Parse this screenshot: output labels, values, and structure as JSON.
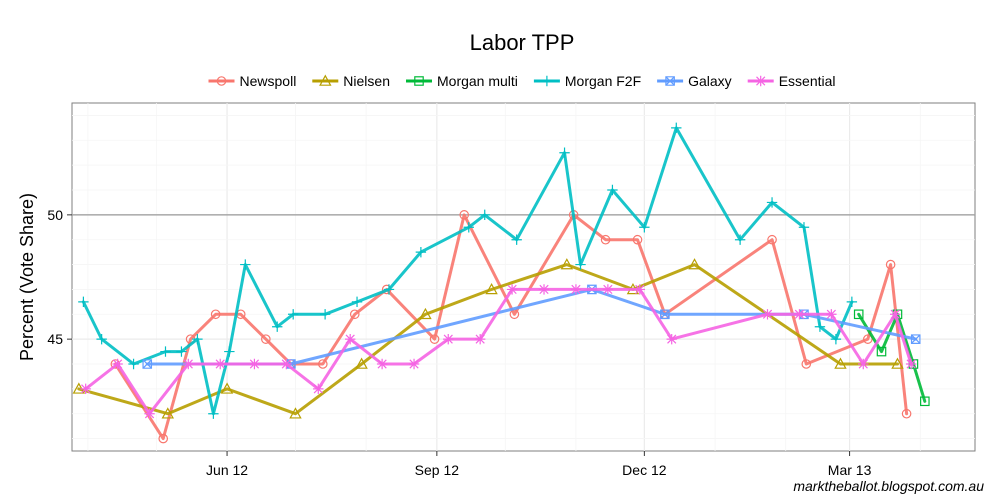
{
  "chart_data": {
    "type": "line",
    "title": "Labor TPP",
    "xlabel": "",
    "ylabel": "Percent (Vote Share)",
    "x_ticks": [
      {
        "label": "Jun 12",
        "date": "2012-06-01"
      },
      {
        "label": "Sep 12",
        "date": "2012-09-01"
      },
      {
        "label": "Dec 12",
        "date": "2012-12-01"
      },
      {
        "label": "Mar 13",
        "date": "2013-03-01"
      }
    ],
    "xlim": [
      "2012-03-25",
      "2013-04-25"
    ],
    "y_ticks": [
      45,
      50
    ],
    "ylim": [
      40.5,
      54.5
    ],
    "reference_line": 50,
    "grid": true,
    "legend_position": "top",
    "series": [
      {
        "name": "Newspoll",
        "color": "#F8766D",
        "marker": "circle",
        "points": [
          [
            "2012-04-13",
            44
          ],
          [
            "2012-05-04",
            41
          ],
          [
            "2012-05-16",
            45
          ],
          [
            "2012-05-27",
            46
          ],
          [
            "2012-06-07",
            46
          ],
          [
            "2012-06-18",
            45
          ],
          [
            "2012-06-29",
            44
          ],
          [
            "2012-07-13",
            44
          ],
          [
            "2012-07-27",
            46
          ],
          [
            "2012-08-10",
            47
          ],
          [
            "2012-08-31",
            45
          ],
          [
            "2012-09-13",
            50
          ],
          [
            "2012-10-05",
            46
          ],
          [
            "2012-10-31",
            50
          ],
          [
            "2012-11-14",
            49
          ],
          [
            "2012-11-28",
            49
          ],
          [
            "2012-12-10",
            46
          ],
          [
            "2013-01-26",
            49
          ],
          [
            "2013-02-10",
            44
          ],
          [
            "2013-03-09",
            45
          ],
          [
            "2013-03-19",
            48
          ],
          [
            "2013-03-26",
            42
          ]
        ]
      },
      {
        "name": "Nielsen",
        "color": "#B79F00",
        "marker": "triangle",
        "points": [
          [
            "2012-03-28",
            43
          ],
          [
            "2012-05-06",
            42
          ],
          [
            "2012-06-01",
            43
          ],
          [
            "2012-07-01",
            42
          ],
          [
            "2012-07-30",
            44
          ],
          [
            "2012-08-27",
            46
          ],
          [
            "2012-09-25",
            47
          ],
          [
            "2012-10-28",
            48
          ],
          [
            "2012-11-26",
            47
          ],
          [
            "2012-12-23",
            48
          ],
          [
            "2013-02-25",
            44
          ],
          [
            "2013-03-22",
            44
          ]
        ]
      },
      {
        "name": "Morgan multi",
        "color": "#00BA38",
        "marker": "square",
        "points": [
          [
            "2013-03-05",
            46
          ],
          [
            "2013-03-15",
            44.5
          ],
          [
            "2013-03-22",
            46
          ],
          [
            "2013-03-29",
            44
          ],
          [
            "2013-04-03",
            42.5
          ]
        ]
      },
      {
        "name": "Morgan F2F",
        "color": "#00BFC4",
        "marker": "plus",
        "points": [
          [
            "2012-03-30",
            46.5
          ],
          [
            "2012-04-07",
            45
          ],
          [
            "2012-04-21",
            44
          ],
          [
            "2012-05-05",
            44.5
          ],
          [
            "2012-05-12",
            44.5
          ],
          [
            "2012-05-19",
            45
          ],
          [
            "2012-05-26",
            42
          ],
          [
            "2012-06-02",
            44.5
          ],
          [
            "2012-06-09",
            48
          ],
          [
            "2012-06-23",
            45.5
          ],
          [
            "2012-06-30",
            46
          ],
          [
            "2012-07-14",
            46
          ],
          [
            "2012-07-28",
            46.5
          ],
          [
            "2012-08-11",
            47
          ],
          [
            "2012-08-25",
            48.5
          ],
          [
            "2012-09-15",
            49.5
          ],
          [
            "2012-09-22",
            50
          ],
          [
            "2012-10-06",
            49
          ],
          [
            "2012-10-27",
            52.5
          ],
          [
            "2012-11-03",
            48
          ],
          [
            "2012-11-17",
            51
          ],
          [
            "2012-12-01",
            49.5
          ],
          [
            "2012-12-15",
            53.5
          ],
          [
            "2013-01-12",
            49
          ],
          [
            "2013-01-26",
            50.5
          ],
          [
            "2013-02-09",
            49.5
          ],
          [
            "2013-02-16",
            45.5
          ],
          [
            "2013-02-23",
            45
          ],
          [
            "2013-03-02",
            46.5
          ]
        ]
      },
      {
        "name": "Galaxy",
        "color": "#619CFF",
        "marker": "boxtimes",
        "points": [
          [
            "2012-04-27",
            44
          ],
          [
            "2012-06-29",
            44
          ],
          [
            "2012-11-08",
            47
          ],
          [
            "2012-12-10",
            46
          ],
          [
            "2013-02-09",
            46
          ],
          [
            "2013-03-30",
            45
          ]
        ]
      },
      {
        "name": "Essential",
        "color": "#F564E3",
        "marker": "star",
        "points": [
          [
            "2012-03-31",
            43
          ],
          [
            "2012-04-14",
            44
          ],
          [
            "2012-04-28",
            42
          ],
          [
            "2012-05-15",
            44
          ],
          [
            "2012-05-29",
            44
          ],
          [
            "2012-06-13",
            44
          ],
          [
            "2012-06-27",
            44
          ],
          [
            "2012-07-11",
            43
          ],
          [
            "2012-07-25",
            45
          ],
          [
            "2012-08-08",
            44
          ],
          [
            "2012-08-22",
            44
          ],
          [
            "2012-09-06",
            45
          ],
          [
            "2012-09-20",
            45
          ],
          [
            "2012-10-04",
            47
          ],
          [
            "2012-10-18",
            47
          ],
          [
            "2012-11-01",
            47
          ],
          [
            "2012-11-15",
            47
          ],
          [
            "2012-11-29",
            47
          ],
          [
            "2012-12-13",
            45
          ],
          [
            "2013-01-24",
            46
          ],
          [
            "2013-02-07",
            46
          ],
          [
            "2013-02-21",
            46
          ],
          [
            "2013-03-07",
            44
          ],
          [
            "2013-03-21",
            46
          ],
          [
            "2013-03-28",
            44
          ]
        ]
      }
    ]
  },
  "credit": "marktheballot.blogspot.com.au"
}
